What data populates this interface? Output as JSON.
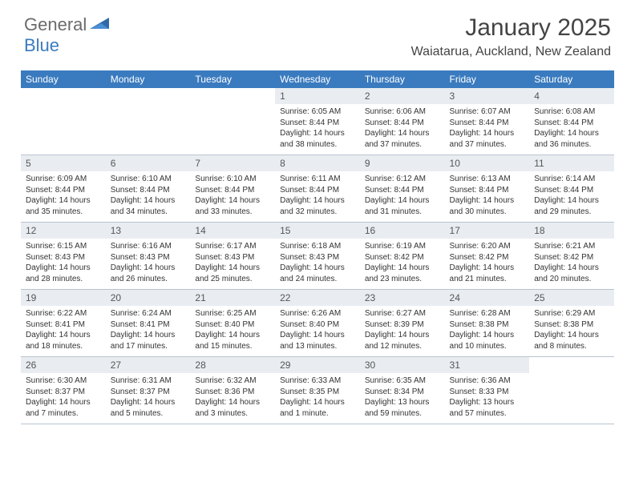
{
  "logo": {
    "textA": "General",
    "textB": "Blue"
  },
  "title": "January 2025",
  "location": "Waiatarua, Auckland, New Zealand",
  "colors": {
    "headerBar": "#3a7bbf",
    "dayNumBg": "#e9edf1",
    "rowBorder": "#b8c4d0",
    "logoGray": "#6b6b6b",
    "logoBlue": "#3a7bbf"
  },
  "weekdays": [
    "Sunday",
    "Monday",
    "Tuesday",
    "Wednesday",
    "Thursday",
    "Friday",
    "Saturday"
  ],
  "startOffset": 3,
  "days": [
    {
      "n": 1,
      "sunrise": "6:05 AM",
      "sunset": "8:44 PM",
      "daylight": "14 hours and 38 minutes."
    },
    {
      "n": 2,
      "sunrise": "6:06 AM",
      "sunset": "8:44 PM",
      "daylight": "14 hours and 37 minutes."
    },
    {
      "n": 3,
      "sunrise": "6:07 AM",
      "sunset": "8:44 PM",
      "daylight": "14 hours and 37 minutes."
    },
    {
      "n": 4,
      "sunrise": "6:08 AM",
      "sunset": "8:44 PM",
      "daylight": "14 hours and 36 minutes."
    },
    {
      "n": 5,
      "sunrise": "6:09 AM",
      "sunset": "8:44 PM",
      "daylight": "14 hours and 35 minutes."
    },
    {
      "n": 6,
      "sunrise": "6:10 AM",
      "sunset": "8:44 PM",
      "daylight": "14 hours and 34 minutes."
    },
    {
      "n": 7,
      "sunrise": "6:10 AM",
      "sunset": "8:44 PM",
      "daylight": "14 hours and 33 minutes."
    },
    {
      "n": 8,
      "sunrise": "6:11 AM",
      "sunset": "8:44 PM",
      "daylight": "14 hours and 32 minutes."
    },
    {
      "n": 9,
      "sunrise": "6:12 AM",
      "sunset": "8:44 PM",
      "daylight": "14 hours and 31 minutes."
    },
    {
      "n": 10,
      "sunrise": "6:13 AM",
      "sunset": "8:44 PM",
      "daylight": "14 hours and 30 minutes."
    },
    {
      "n": 11,
      "sunrise": "6:14 AM",
      "sunset": "8:44 PM",
      "daylight": "14 hours and 29 minutes."
    },
    {
      "n": 12,
      "sunrise": "6:15 AM",
      "sunset": "8:43 PM",
      "daylight": "14 hours and 28 minutes."
    },
    {
      "n": 13,
      "sunrise": "6:16 AM",
      "sunset": "8:43 PM",
      "daylight": "14 hours and 26 minutes."
    },
    {
      "n": 14,
      "sunrise": "6:17 AM",
      "sunset": "8:43 PM",
      "daylight": "14 hours and 25 minutes."
    },
    {
      "n": 15,
      "sunrise": "6:18 AM",
      "sunset": "8:43 PM",
      "daylight": "14 hours and 24 minutes."
    },
    {
      "n": 16,
      "sunrise": "6:19 AM",
      "sunset": "8:42 PM",
      "daylight": "14 hours and 23 minutes."
    },
    {
      "n": 17,
      "sunrise": "6:20 AM",
      "sunset": "8:42 PM",
      "daylight": "14 hours and 21 minutes."
    },
    {
      "n": 18,
      "sunrise": "6:21 AM",
      "sunset": "8:42 PM",
      "daylight": "14 hours and 20 minutes."
    },
    {
      "n": 19,
      "sunrise": "6:22 AM",
      "sunset": "8:41 PM",
      "daylight": "14 hours and 18 minutes."
    },
    {
      "n": 20,
      "sunrise": "6:24 AM",
      "sunset": "8:41 PM",
      "daylight": "14 hours and 17 minutes."
    },
    {
      "n": 21,
      "sunrise": "6:25 AM",
      "sunset": "8:40 PM",
      "daylight": "14 hours and 15 minutes."
    },
    {
      "n": 22,
      "sunrise": "6:26 AM",
      "sunset": "8:40 PM",
      "daylight": "14 hours and 13 minutes."
    },
    {
      "n": 23,
      "sunrise": "6:27 AM",
      "sunset": "8:39 PM",
      "daylight": "14 hours and 12 minutes."
    },
    {
      "n": 24,
      "sunrise": "6:28 AM",
      "sunset": "8:38 PM",
      "daylight": "14 hours and 10 minutes."
    },
    {
      "n": 25,
      "sunrise": "6:29 AM",
      "sunset": "8:38 PM",
      "daylight": "14 hours and 8 minutes."
    },
    {
      "n": 26,
      "sunrise": "6:30 AM",
      "sunset": "8:37 PM",
      "daylight": "14 hours and 7 minutes."
    },
    {
      "n": 27,
      "sunrise": "6:31 AM",
      "sunset": "8:37 PM",
      "daylight": "14 hours and 5 minutes."
    },
    {
      "n": 28,
      "sunrise": "6:32 AM",
      "sunset": "8:36 PM",
      "daylight": "14 hours and 3 minutes."
    },
    {
      "n": 29,
      "sunrise": "6:33 AM",
      "sunset": "8:35 PM",
      "daylight": "14 hours and 1 minute."
    },
    {
      "n": 30,
      "sunrise": "6:35 AM",
      "sunset": "8:34 PM",
      "daylight": "13 hours and 59 minutes."
    },
    {
      "n": 31,
      "sunrise": "6:36 AM",
      "sunset": "8:33 PM",
      "daylight": "13 hours and 57 minutes."
    }
  ],
  "labels": {
    "sunrise": "Sunrise:",
    "sunset": "Sunset:",
    "daylight": "Daylight:"
  }
}
